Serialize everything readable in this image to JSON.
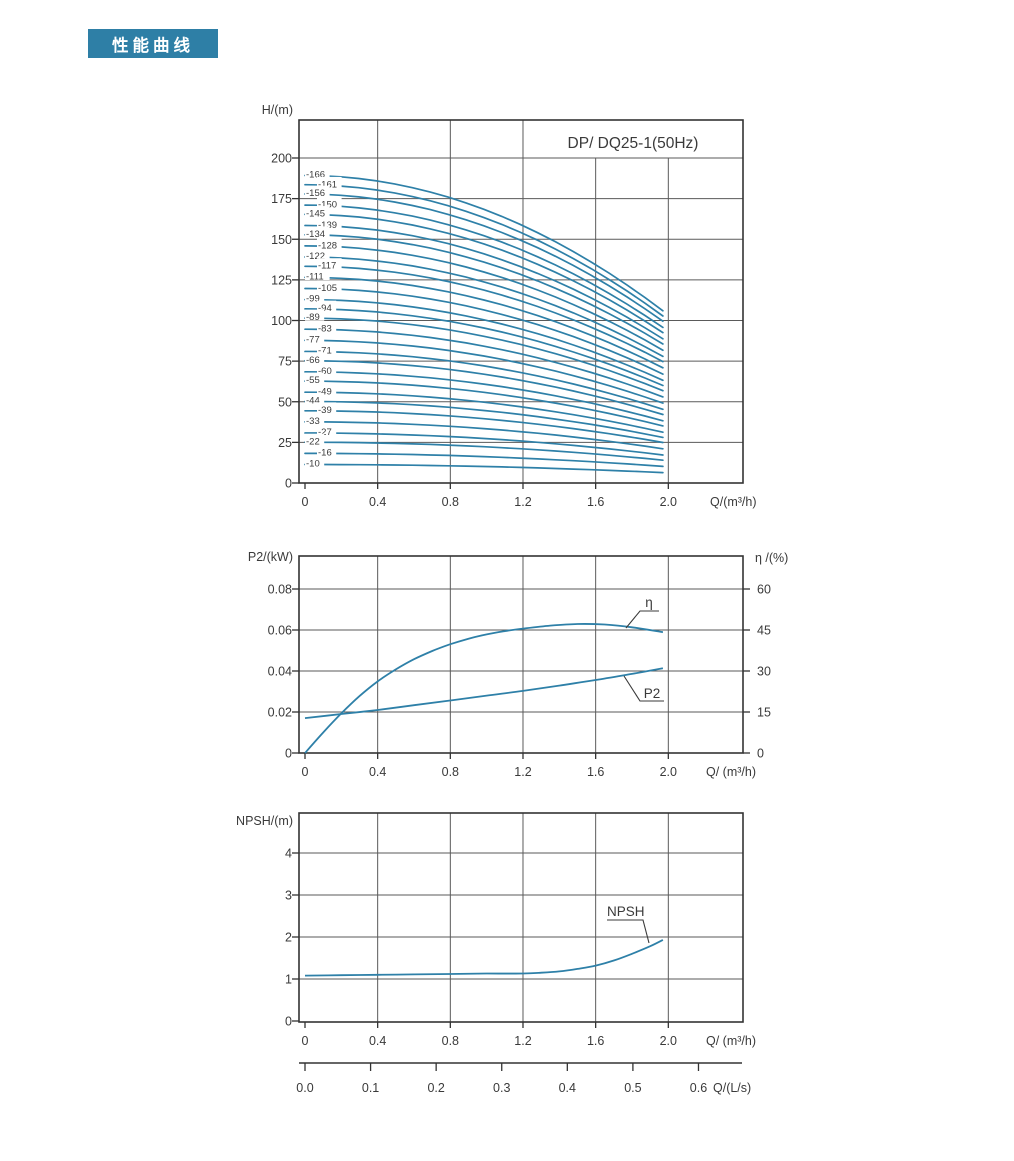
{
  "header": {
    "title": "性能曲线"
  },
  "palette": {
    "badge_bg": "#2e7fa6",
    "badge_fg": "#ffffff",
    "curve": "#2e80a8",
    "grid": "#5a5a5a",
    "frame": "#333333",
    "text": "#3a3a3a"
  },
  "chart_data": [
    {
      "id": "head-flow-chart",
      "type": "line",
      "title": "DP/ DQ25-1(50Hz)",
      "ylabel": "H/(m)",
      "xlabel": "Q/(m³/h)",
      "xticks": [
        "0",
        "0.4",
        "0.8",
        "1.2",
        "1.6",
        "2.0"
      ],
      "yticks": [
        "0",
        "25",
        "50",
        "75",
        "100",
        "125",
        "150",
        "175",
        "200"
      ],
      "xlim": [
        0,
        2.41
      ],
      "ylim": [
        0,
        223
      ],
      "grid": "on",
      "stage_curves": {
        "labels": [
          "-166",
          "-161",
          "-156",
          "-150",
          "-145",
          "-139",
          "-134",
          "-128",
          "-122",
          "-117",
          "-111",
          "-105",
          "-99",
          "-94",
          "-89",
          "-83",
          "-77",
          "-71",
          "-66",
          "-60",
          "-55",
          "-49",
          "-44",
          "-39",
          "-33",
          "-27",
          "-22",
          "-16",
          "-10"
        ],
        "start_head_factor": 1.14,
        "end_head_ratio": 0.56,
        "q_end": 1.97
      }
    },
    {
      "id": "power-efficiency-chart",
      "type": "line",
      "ylabel_left": "P2/(kW)",
      "ylabel_right": "η /(%)",
      "xlabel": "Q/ (m³/h)",
      "xticks": [
        "0",
        "0.4",
        "0.8",
        "1.2",
        "1.6",
        "2.0"
      ],
      "yticks_left": [
        "0",
        "0.02",
        "0.04",
        "0.06",
        "0.08"
      ],
      "yticks_right": [
        "0",
        "15",
        "30",
        "45",
        "60"
      ],
      "ylim_left": [
        0,
        0.096
      ],
      "ylim_right": [
        0,
        72
      ],
      "grid": "on",
      "series": [
        {
          "name": "η",
          "axis": "right",
          "x": [
            0,
            0.1,
            0.2,
            0.3,
            0.4,
            0.5,
            0.6,
            0.7,
            0.8,
            0.9,
            1.0,
            1.1,
            1.2,
            1.35,
            1.5,
            1.65,
            1.8,
            1.97
          ],
          "y": [
            0,
            7.5,
            14.5,
            20.8,
            26.2,
            30.6,
            34.3,
            37.3,
            39.8,
            41.8,
            43.4,
            44.6,
            45.5,
            46.6,
            47.2,
            47.0,
            46.0,
            44.2
          ]
        },
        {
          "name": "P2",
          "axis": "left",
          "x": [
            0,
            0.2,
            0.4,
            0.6,
            0.8,
            1.0,
            1.2,
            1.4,
            1.6,
            1.8,
            1.97
          ],
          "y": [
            0.017,
            0.019,
            0.021,
            0.0233,
            0.0256,
            0.028,
            0.0303,
            0.0329,
            0.0356,
            0.0386,
            0.0413
          ]
        }
      ]
    },
    {
      "id": "npsh-chart",
      "type": "line",
      "ylabel": "NPSH/(m)",
      "xlabel": "Q/ (m³/h)",
      "xlabel_secondary": "Q/(L/s)",
      "xticks": [
        "0",
        "0.4",
        "0.8",
        "1.2",
        "1.6",
        "2.0"
      ],
      "yticks": [
        "0",
        "1",
        "2",
        "3",
        "4"
      ],
      "xticks_secondary": [
        "0.0",
        "0.1",
        "0.2",
        "0.3",
        "0.4",
        "0.5",
        "0.6"
      ],
      "ylim": [
        0,
        4.95
      ],
      "grid": "on",
      "series": [
        {
          "name": "NPSH",
          "x": [
            0,
            0.2,
            0.4,
            0.6,
            0.8,
            1.0,
            1.2,
            1.3,
            1.4,
            1.5,
            1.6,
            1.7,
            1.8,
            1.9,
            1.97
          ],
          "y": [
            1.08,
            1.09,
            1.1,
            1.11,
            1.12,
            1.13,
            1.13,
            1.15,
            1.18,
            1.24,
            1.32,
            1.44,
            1.6,
            1.78,
            1.93
          ]
        }
      ]
    }
  ]
}
